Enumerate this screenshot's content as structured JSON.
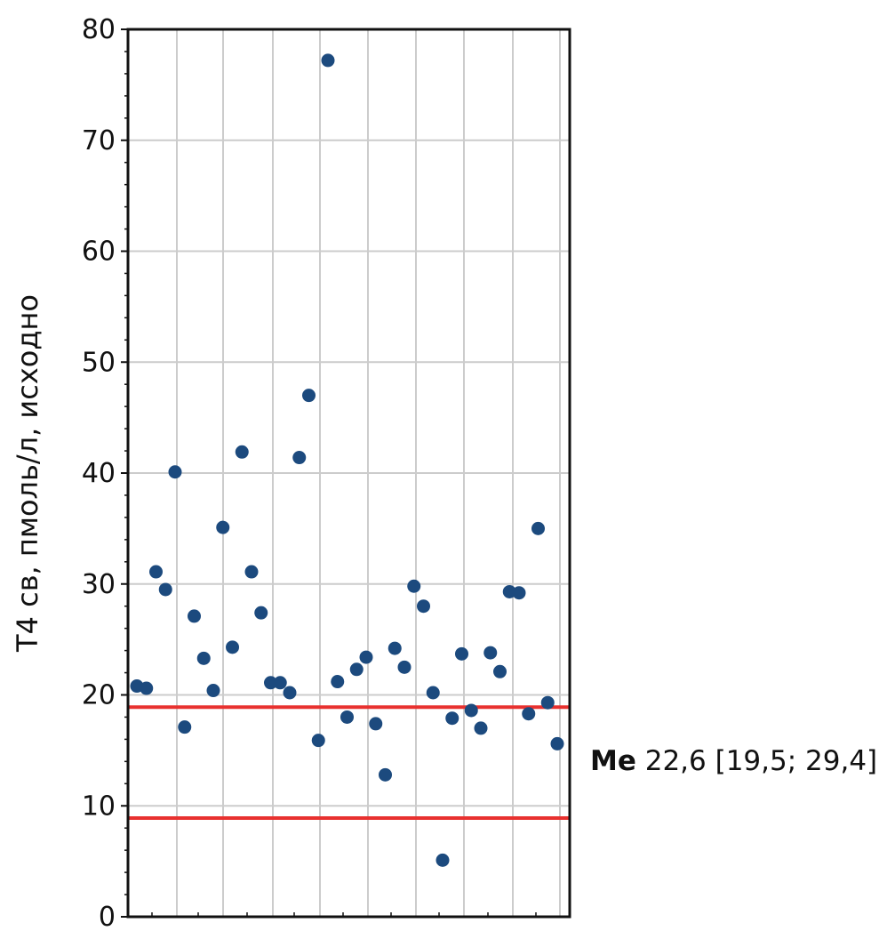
{
  "chart_data": {
    "type": "scatter",
    "title": "",
    "xlabel": "",
    "ylabel": "T4 св, пмоль/л, исходно",
    "ylim": [
      0,
      80
    ],
    "yticks": [
      0,
      10,
      20,
      30,
      40,
      50,
      60,
      70,
      80
    ],
    "grid": true,
    "x": [
      1,
      2,
      3,
      4,
      5,
      6,
      7,
      8,
      9,
      10,
      11,
      12,
      13,
      14,
      15,
      16,
      17,
      18,
      19,
      20,
      21,
      22,
      23,
      24,
      25,
      26,
      27,
      28,
      29,
      30,
      31,
      32,
      33,
      34,
      35,
      36,
      37,
      38,
      39,
      40,
      41,
      42,
      43,
      44,
      45
    ],
    "values": [
      20.8,
      20.6,
      31.1,
      29.5,
      40.1,
      17.1,
      27.1,
      23.3,
      20.4,
      35.1,
      24.3,
      41.9,
      31.1,
      27.4,
      21.1,
      21.1,
      20.2,
      41.4,
      47.0,
      15.9,
      77.2,
      21.2,
      18.0,
      22.3,
      23.4,
      17.4,
      12.8,
      24.2,
      22.5,
      29.8,
      28.0,
      20.2,
      5.1,
      17.9,
      23.7,
      18.6,
      17.0,
      23.8,
      22.1,
      29.3,
      29.2,
      18.3,
      35.0,
      19.3,
      15.6
    ],
    "marker_color": "#1c4a7e",
    "reference_lines": [
      {
        "y": 18.9,
        "color": "#e8312f"
      },
      {
        "y": 8.9,
        "color": "#e8312f"
      }
    ]
  },
  "annotation": {
    "bold": "Me",
    "text": "22,6 [19,5; 29,4]"
  }
}
